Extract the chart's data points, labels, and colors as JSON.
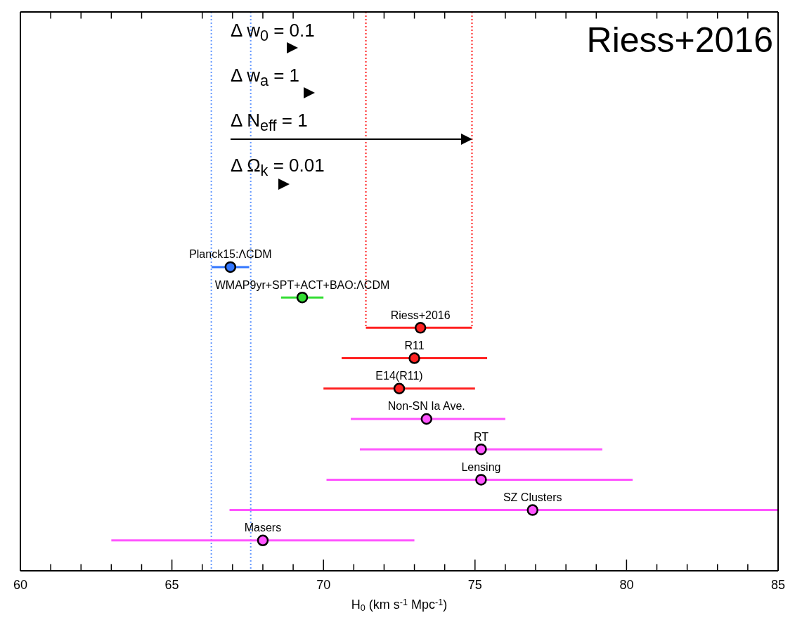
{
  "chart_data": {
    "type": "scatter",
    "orientation": "horizontal",
    "xlabel": "H$_{0}$ (km s$^{-1}$ Mpc$^{-1}$)",
    "categories": [
      "Planck15:ΛCDM",
      "WMAP9yr+SPT+ACT+BAO:ΛCDM",
      "Riess+2016",
      "R11",
      "E14(R11)",
      "Non-SN Ia Ave.",
      "RT",
      "Lensing",
      "SZ Clusters",
      "Masers"
    ],
    "values": [
      66.93,
      69.3,
      73.2,
      73.0,
      72.5,
      73.4,
      75.2,
      75.2,
      76.9,
      68.0
    ],
    "errors": [
      0.62,
      0.7,
      [
        71.4,
        74.9
      ],
      [
        70.6,
        75.4
      ],
      [
        70.0,
        75.0
      ],
      [
        70.9,
        76.0
      ],
      [
        71.2,
        79.2
      ],
      [
        70.1,
        80.2
      ],
      [
        66.9,
        85.0
      ],
      [
        63.0,
        73.0
      ]
    ],
    "colors": [
      "#3377ff",
      "#33dd33",
      "#ff2222",
      "#ff2222",
      "#ff2222",
      "#ff55ff",
      "#ff55ff",
      "#ff55ff",
      "#ff55ff",
      "#ff55ff"
    ],
    "marker": "circle",
    "xlim": [
      60,
      85
    ],
    "xticks": [
      60,
      {
        "value": 61,
        "label": null
      },
      {
        "value": 62,
        "label": null
      },
      {
        "value": 63,
        "label": null
      },
      {
        "value": 64,
        "label": null
      },
      65,
      {
        "value": 66,
        "label": null
      },
      {
        "value": 67,
        "label": null
      },
      {
        "value": 68,
        "label": null
      },
      {
        "value": 69,
        "label": null
      },
      70,
      {
        "value": 71,
        "label": null
      },
      {
        "value": 72,
        "label": null
      },
      {
        "value": 73,
        "label": null
      },
      {
        "value": 74,
        "label": null
      },
      75,
      {
        "value": 76,
        "label": null
      },
      {
        "value": 77,
        "label": null
      },
      {
        "value": 78,
        "label": null
      },
      {
        "value": 79,
        "label": null
      },
      80,
      {
        "value": 81,
        "label": null
      },
      {
        "value": 82,
        "label": null
      },
      {
        "value": 83,
        "label": null
      },
      {
        "value": 84,
        "label": null
      },
      85
    ],
    "tick_labels": "x",
    "ref_lines": [
      {
        "axis": "x",
        "value": 66.3,
        "color": "#6699ff",
        "line_style": "dotted"
      },
      {
        "axis": "x",
        "value": 67.6,
        "color": "#6699ff",
        "line_style": "dotted"
      },
      {
        "axis": "x",
        "value": 71.4,
        "color": "#ff2222",
        "line_style": "dotted"
      },
      {
        "axis": "x",
        "value": 74.9,
        "color": "#ff2222",
        "line_style": "dotted"
      }
    ],
    "annotations": [
      "Riess+2016",
      "Δ w$_{0}$ = 0.1",
      "Δ w$_{a}$ = 1",
      "Δ N$_{eff}$ = 1",
      "Δ Ω$_{k}$ = 0.01"
    ]
  }
}
